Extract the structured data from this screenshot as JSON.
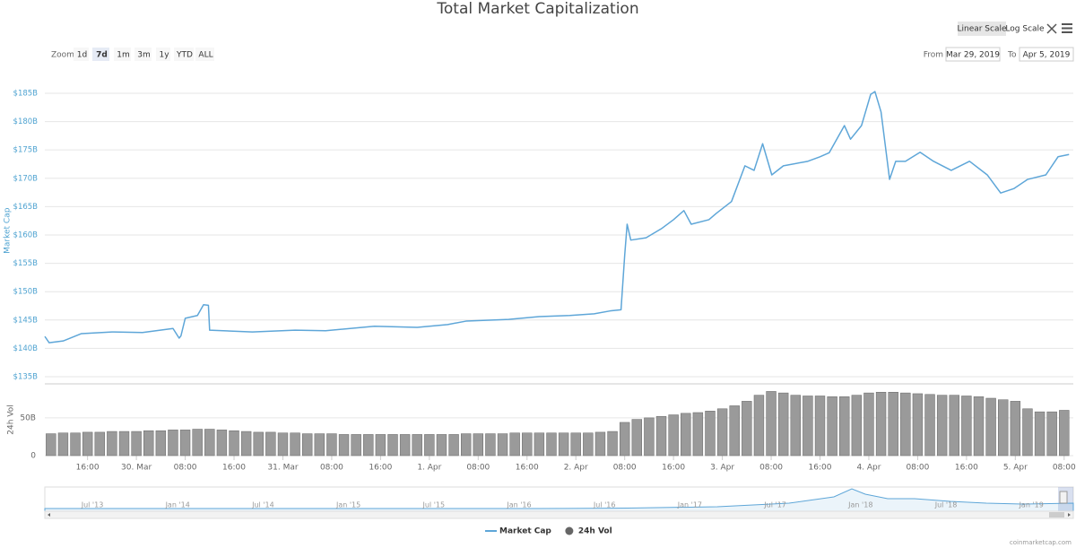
{
  "toolbar": {
    "zoom_label": "Zoom",
    "zoom_buttons": [
      "1d",
      "7d",
      "1m",
      "3m",
      "1y",
      "YTD",
      "ALL"
    ],
    "zoom_selected": "7d",
    "scale_buttons": [
      "Linear Scale",
      "Log Scale"
    ],
    "scale_selected": "Linear Scale",
    "from_label": "From",
    "from": "Mar 29, 2019",
    "to_label": "To",
    "to": "Apr 5, 2019"
  },
  "chart_data": [
    {
      "type": "line",
      "title": "Total Market Capitalization",
      "ylabel": "Market Cap",
      "x": [
        9,
        9.7,
        12,
        15,
        20,
        25,
        30,
        31,
        31.3,
        32,
        34,
        35,
        35.8,
        36,
        43,
        50,
        55,
        63,
        70,
        75,
        78,
        85,
        90,
        95,
        99,
        101.6,
        103.4,
        104,
        104.4,
        105,
        107.5,
        110,
        112,
        113.7,
        114.9,
        117.8,
        119,
        121.5,
        123.7,
        125.2,
        126.6,
        128.1,
        130,
        134,
        136,
        137.5,
        140,
        141,
        142.8,
        144.3,
        145,
        146,
        147.4,
        148.4,
        150,
        152.4,
        154.6,
        157.5,
        160.5,
        163.4,
        165.6,
        167.8,
        170,
        173,
        175,
        176.8
      ],
      "series": [
        {
          "name": "Market Cap",
          "color": "#5ea6d8",
          "values": [
            142.1,
            141.0,
            141.3,
            142.6,
            142.9,
            142.8,
            143.5,
            141.8,
            142.2,
            145.3,
            145.8,
            147.7,
            147.6,
            143.2,
            142.9,
            143.2,
            143.1,
            143.9,
            143.7,
            144.2,
            144.8,
            145.1,
            145.6,
            145.8,
            146.1,
            146.6,
            146.8,
            156.4,
            161.9,
            159.1,
            159.5,
            161.1,
            162.7,
            164.3,
            161.9,
            162.7,
            163.8,
            165.9,
            172.2,
            171.4,
            176.1,
            170.6,
            172.2,
            173.0,
            173.8,
            174.5,
            179.3,
            176.9,
            179.3,
            184.8,
            185.3,
            181.7,
            169.8,
            173.0,
            173.0,
            174.6,
            173.0,
            171.4,
            173.0,
            170.6,
            167.4,
            168.2,
            169.8,
            170.6,
            173.8,
            174.2
          ]
        }
      ],
      "xlim": [
        9,
        177.5
      ],
      "ylim": [
        135,
        186.5
      ],
      "yticks": [
        {
          "value": 135,
          "label": "$135B"
        },
        {
          "value": 140,
          "label": "$140B"
        },
        {
          "value": 145,
          "label": "$145B"
        },
        {
          "value": 150,
          "label": "$150B"
        },
        {
          "value": 155,
          "label": "$155B"
        },
        {
          "value": 160,
          "label": "$160B"
        },
        {
          "value": 165,
          "label": "$165B"
        },
        {
          "value": 170,
          "label": "$170B"
        },
        {
          "value": 175,
          "label": "$175B"
        },
        {
          "value": 180,
          "label": "$180B"
        },
        {
          "value": 185,
          "label": "$185B"
        }
      ],
      "grid": true
    },
    {
      "type": "bar",
      "ylabel": "24h Vol",
      "x": [
        10,
        12,
        14,
        16,
        18,
        20,
        22,
        24,
        26,
        28,
        30,
        32,
        34,
        36,
        38,
        40,
        42,
        44,
        46,
        48,
        50,
        52,
        54,
        56,
        58,
        60,
        62,
        64,
        66,
        68,
        70,
        72,
        74,
        76,
        78,
        80,
        82,
        84,
        86,
        88,
        90,
        92,
        94,
        96,
        98,
        100,
        102,
        104,
        106,
        108,
        110,
        112,
        114,
        116,
        118,
        120,
        122,
        124,
        126,
        128,
        130,
        132,
        134,
        136,
        138,
        140,
        142,
        144,
        146,
        148,
        150,
        152,
        154,
        156,
        158,
        160,
        162,
        164,
        166,
        168,
        170,
        172,
        174,
        176
      ],
      "series": [
        {
          "name": "24h Vol",
          "color": "#9a9a9a",
          "values": [
            29,
            30,
            30,
            31,
            31,
            32,
            32,
            32,
            33,
            33,
            34,
            34,
            35,
            35,
            34,
            33,
            32,
            31,
            31,
            30,
            30,
            29,
            29,
            29,
            28,
            28,
            28,
            28,
            28,
            28,
            28,
            28,
            28,
            28,
            29,
            29,
            29,
            29,
            30,
            30,
            30,
            30,
            30,
            30,
            30,
            31,
            32,
            44,
            48,
            50,
            52,
            54,
            56,
            57,
            59,
            62,
            66,
            72,
            80,
            85,
            83,
            80,
            79,
            79,
            78,
            78,
            80,
            83,
            84,
            84,
            83,
            82,
            81,
            80,
            80,
            79,
            78,
            76,
            74,
            72,
            62,
            58,
            58,
            60
          ]
        }
      ],
      "xlim": [
        9,
        177.5
      ],
      "xticks": [
        {
          "value": 16,
          "label": "16:00"
        },
        {
          "value": 24,
          "label": "30. Mar"
        },
        {
          "value": 32,
          "label": "08:00"
        },
        {
          "value": 40,
          "label": "16:00"
        },
        {
          "value": 48,
          "label": "31. Mar"
        },
        {
          "value": 56,
          "label": "08:00"
        },
        {
          "value": 64,
          "label": "16:00"
        },
        {
          "value": 72,
          "label": "1. Apr"
        },
        {
          "value": 80,
          "label": "08:00"
        },
        {
          "value": 88,
          "label": "16:00"
        },
        {
          "value": 96,
          "label": "2. Apr"
        },
        {
          "value": 104,
          "label": "08:00"
        },
        {
          "value": 112,
          "label": "16:00"
        },
        {
          "value": 120,
          "label": "3. Apr"
        },
        {
          "value": 128,
          "label": "08:00"
        },
        {
          "value": 136,
          "label": "16:00"
        },
        {
          "value": 144,
          "label": "4. Apr"
        },
        {
          "value": 152,
          "label": "08:00"
        },
        {
          "value": 160,
          "label": "16:00"
        },
        {
          "value": 168,
          "label": "5. Apr"
        },
        {
          "value": 176,
          "label": "08:00"
        }
      ],
      "ylim": [
        0,
        95
      ],
      "yticks": [
        0,
        {
          "value": 50,
          "label": "50B"
        }
      ],
      "grid": true
    }
  ],
  "navigator": {
    "labels": [
      "Jul '13",
      "Jan '14",
      "Jul '14",
      "Jan '15",
      "Jul '15",
      "Jan '16",
      "Jul '16",
      "Jan '17",
      "Jul '17",
      "Jan '18",
      "Jul '18",
      "Jan '19"
    ]
  },
  "credit": "coinmarketcap.com"
}
